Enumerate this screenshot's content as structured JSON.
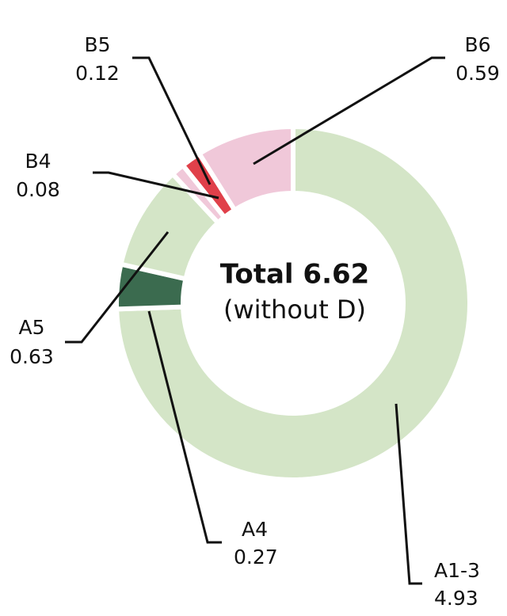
{
  "chart_data": {
    "type": "donut",
    "center_title": "Total 6.62",
    "center_subtitle": "(without D)",
    "categories": [
      "A1-3",
      "A4",
      "A5",
      "B4",
      "B5",
      "B6"
    ],
    "values": [
      4.93,
      0.27,
      0.63,
      0.08,
      0.12,
      0.59
    ],
    "colors": [
      "#d4e5c7",
      "#3b6b4f",
      "#d4e5c7",
      "#f0c8d9",
      "#e0404a",
      "#f0c8d9"
    ]
  }
}
